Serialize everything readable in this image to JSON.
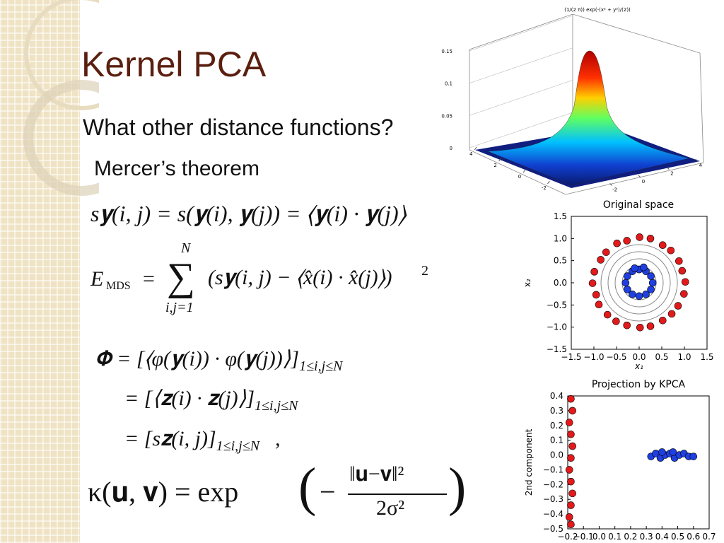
{
  "slide": {
    "title": "Kernel PCA",
    "bullet": "What other distance functions?",
    "sub_bullet": "Mercer’s theorem",
    "formulas": {
      "similarity": "s𝐲(i, j) = s(𝐲(i), 𝐲(j)) = ⟨𝐲(i) · 𝐲(j)⟩",
      "mds": {
        "lhs": "E",
        "lhs_sub": "MDS",
        "eq": "=",
        "sum": "∑",
        "upper": "N",
        "lower": "i,j=1",
        "body": "(s𝐲(i, j) − ⟨x̂(i) · x̂(j)⟩)",
        "power": "2"
      },
      "phi": [
        {
          "text": "𝚽 = [⟨φ(𝐲(i)) · φ(𝐲(j))⟩]",
          "sub": "1≤i,j≤N"
        },
        {
          "text": "= [⟨𝐳(i) · 𝐳(j)⟩]",
          "sub": "1≤i,j≤N"
        },
        {
          "text": "= [s𝐳(i, j)]",
          "sub": "1≤i,j≤N",
          "tail": ","
        }
      ],
      "kernel": {
        "lhs": "κ(𝐮, 𝐯) = exp",
        "open": "(",
        "sign": "−",
        "numerator": "‖𝐮−𝐯‖²",
        "denominator": "2σ²",
        "close": ")"
      }
    }
  },
  "chart_data": [
    {
      "type": "surface",
      "title": "(1/(2 π)) exp(-(x² + y²)/(2))",
      "xlim": [
        -4,
        4
      ],
      "xticks": [
        4,
        2,
        0,
        -2
      ],
      "ylim": [
        -4,
        4
      ],
      "yticks": [
        -2,
        0,
        2,
        4
      ],
      "zlim": [
        0,
        0.15
      ],
      "zticks": [
        0,
        0.05,
        0.1,
        0.15
      ]
    },
    {
      "type": "scatter",
      "title": "Original space",
      "xlabel": "x₁",
      "ylabel": "x₂",
      "xlim": [
        -1.5,
        1.5
      ],
      "ylim": [
        -1.5,
        1.5
      ],
      "xticks": [
        {
          "value": -1.5,
          "label": "−1.5"
        },
        {
          "value": -1.0,
          "label": "−1.0"
        },
        {
          "value": -0.5,
          "label": "−0.5"
        },
        {
          "value": 0,
          "label": "0.0"
        },
        0.5,
        {
          "value": 1,
          "label": "1.0"
        },
        1.5
      ],
      "yticks": [
        {
          "value": -1.5,
          "label": "−1.5"
        },
        {
          "value": -1.0,
          "label": "−1.0"
        },
        {
          "value": -0.5,
          "label": "−0.5"
        },
        {
          "value": 0,
          "label": "0.0"
        },
        0.5,
        {
          "value": 1,
          "label": "1.0"
        },
        1.5
      ],
      "series": [
        {
          "color": "#e31a1c",
          "x": [
            1.02,
            0.95,
            0.88,
            0.7,
            0.52,
            0.25,
            0.01,
            -0.27,
            -0.49,
            -0.73,
            -0.85,
            -0.99,
            -1.03,
            -0.95,
            -0.89,
            -0.7,
            -0.51,
            -0.27,
            0.02,
            0.25,
            0.52,
            0.72,
            0.86,
            0.99
          ],
          "y": [
            0.02,
            0.27,
            0.49,
            0.73,
            0.85,
            1.0,
            1.03,
            0.95,
            0.89,
            0.69,
            0.52,
            0.25,
            -0.01,
            -0.27,
            -0.49,
            -0.72,
            -0.87,
            -0.96,
            -1.01,
            -0.98,
            -0.85,
            -0.7,
            -0.52,
            -0.25
          ]
        },
        {
          "color": "#1f3fe0",
          "x": [
            0.3,
            0.26,
            0.15,
            0.0,
            -0.15,
            -0.26,
            -0.3,
            -0.26,
            -0.15,
            0.0,
            0.15,
            0.26,
            0.1,
            -0.1
          ],
          "y": [
            0.0,
            0.15,
            0.26,
            0.3,
            0.26,
            0.15,
            0.0,
            -0.15,
            -0.26,
            -0.3,
            -0.26,
            -0.15,
            0.35,
            0.33
          ]
        }
      ]
    },
    {
      "type": "scatter",
      "title": "Projection by KPCA",
      "ylabel": "2nd component",
      "xlim": [
        -0.2,
        0.7
      ],
      "ylim": [
        -0.5,
        0.4
      ],
      "xticks": [
        {
          "value": -0.2,
          "label": "−0.2"
        },
        {
          "value": -0.1,
          "label": "−0.1"
        },
        {
          "value": 0,
          "label": "0.0"
        },
        0.1,
        0.2,
        0.3,
        0.4,
        0.5,
        0.6,
        0.7
      ],
      "yticks": [
        0.4,
        0.3,
        0.2,
        0.1,
        {
          "value": 0,
          "label": "0.0"
        },
        {
          "value": -0.1,
          "label": "−0.1"
        },
        {
          "value": -0.2,
          "label": "−0.2"
        },
        {
          "value": -0.3,
          "label": "−0.3"
        },
        {
          "value": -0.4,
          "label": "−0.4"
        },
        {
          "value": -0.5,
          "label": "−0.5"
        }
      ],
      "series": [
        {
          "color": "#e31a1c",
          "x": [
            -0.18,
            -0.17,
            -0.19,
            -0.18,
            -0.17,
            -0.18,
            -0.19,
            -0.18,
            -0.17,
            -0.18,
            -0.19,
            -0.18
          ],
          "y": [
            0.38,
            0.3,
            0.22,
            0.14,
            0.06,
            -0.02,
            -0.1,
            -0.18,
            -0.26,
            -0.34,
            -0.42,
            -0.47
          ]
        },
        {
          "color": "#1f3fe0",
          "x": [
            0.33,
            0.36,
            0.39,
            0.42,
            0.45,
            0.48,
            0.51,
            0.54,
            0.57,
            0.6,
            0.4,
            0.47
          ],
          "y": [
            -0.01,
            0.01,
            -0.02,
            0.0,
            0.01,
            -0.02,
            0.0,
            0.01,
            -0.01,
            -0.01,
            0.02,
            0.02
          ]
        }
      ]
    }
  ]
}
